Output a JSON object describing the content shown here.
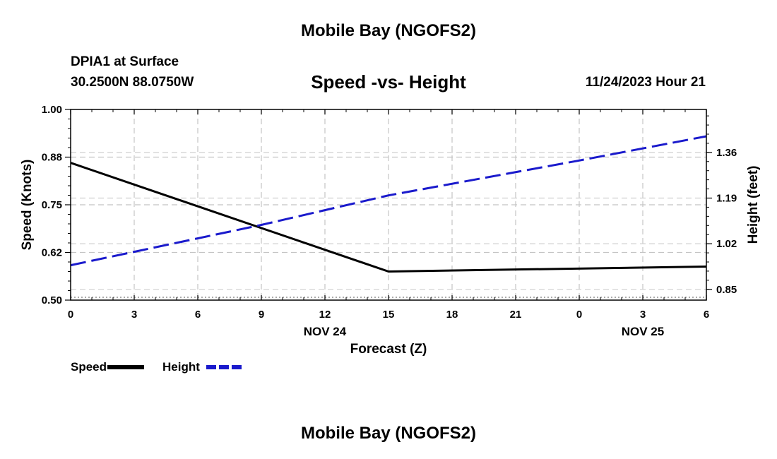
{
  "header": {
    "title": "Mobile Bay (NGOFS2)",
    "station": "DPIA1 at Surface",
    "coords": "30.2500N  88.0750W",
    "datetime": "11/24/2023 Hour 21"
  },
  "footer": {
    "title": "Mobile Bay (NGOFS2)"
  },
  "chart_data": {
    "type": "line",
    "title": "Speed -vs- Height",
    "xlabel": "Forecast (Z)",
    "ylabel_left": "Speed (Knots)",
    "ylabel_right": "Height (feet)",
    "x": [
      0,
      3,
      6,
      9,
      12,
      15,
      18,
      21,
      24,
      27,
      30
    ],
    "xlim": [
      0,
      30
    ],
    "x_tick_labels": [
      "0",
      "3",
      "6",
      "9",
      "12",
      "15",
      "18",
      "21",
      "0",
      "3",
      "6"
    ],
    "date_labels": [
      {
        "x": 12,
        "label": "NOV 24"
      },
      {
        "x": 27,
        "label": "NOV 25"
      }
    ],
    "ylim_left": [
      0.5,
      1.0
    ],
    "y_left_ticks": [
      "1.00",
      "0.88",
      "0.75",
      "0.62",
      "0.50"
    ],
    "y_left_tick_values": [
      1.0,
      0.875,
      0.75,
      0.625,
      0.5
    ],
    "ylim_right": [
      0.81,
      1.52
    ],
    "y_right_ticks": [
      "1.36",
      "1.19",
      "1.02",
      "0.85"
    ],
    "y_right_tick_values": [
      1.36,
      1.19,
      1.02,
      0.85
    ],
    "grid": true,
    "series": [
      {
        "name": "Speed",
        "axis": "left",
        "color": "#000000",
        "dash": "solid",
        "points": [
          [
            0,
            0.86
          ],
          [
            15,
            0.575
          ],
          [
            30,
            0.588
          ]
        ]
      },
      {
        "name": "Height",
        "axis": "right",
        "color": "#1a1acc",
        "dash": "dashed",
        "points": [
          [
            0,
            0.94
          ],
          [
            9,
            1.09
          ],
          [
            15,
            1.2
          ],
          [
            24,
            1.33
          ],
          [
            30,
            1.42
          ]
        ]
      }
    ],
    "legend": [
      {
        "label": "Speed",
        "color": "#000000",
        "dash": "solid"
      },
      {
        "label": "Height",
        "color": "#1a1acc",
        "dash": "dashed"
      }
    ]
  }
}
